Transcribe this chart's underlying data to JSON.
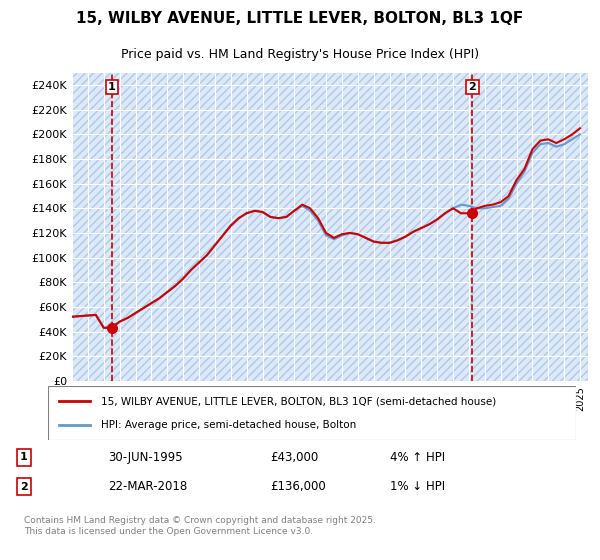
{
  "title_line1": "15, WILBY AVENUE, LITTLE LEVER, BOLTON, BL3 1QF",
  "title_line2": "Price paid vs. HM Land Registry's House Price Index (HPI)",
  "ylabel": "",
  "ylim": [
    0,
    250000
  ],
  "yticks": [
    0,
    20000,
    40000,
    60000,
    80000,
    100000,
    120000,
    140000,
    160000,
    180000,
    200000,
    220000,
    240000
  ],
  "ytick_labels": [
    "£0",
    "£20K",
    "£40K",
    "£60K",
    "£80K",
    "£100K",
    "£120K",
    "£140K",
    "£160K",
    "£180K",
    "£200K",
    "£220K",
    "£240K"
  ],
  "background_color": "#dce9f8",
  "plot_bg_color": "#dce9f8",
  "grid_color": "#ffffff",
  "red_line_color": "#cc0000",
  "blue_line_color": "#6699cc",
  "marker_color": "#cc0000",
  "dashed_line_color": "#cc0000",
  "transaction1_x": 1995.5,
  "transaction1_y": 43000,
  "transaction1_label": "1",
  "transaction2_x": 2018.22,
  "transaction2_y": 136000,
  "transaction2_label": "2",
  "legend_entry1": "15, WILBY AVENUE, LITTLE LEVER, BOLTON, BL3 1QF (semi-detached house)",
  "legend_entry2": "HPI: Average price, semi-detached house, Bolton",
  "annotation1_date": "30-JUN-1995",
  "annotation1_price": "£43,000",
  "annotation1_hpi": "4% ↑ HPI",
  "annotation2_date": "22-MAR-2018",
  "annotation2_price": "£136,000",
  "annotation2_hpi": "1% ↓ HPI",
  "copyright_text": "Contains HM Land Registry data © Crown copyright and database right 2025.\nThis data is licensed under the Open Government Licence v3.0.",
  "xmin": 1993,
  "xmax": 2025.5,
  "hpi_years": [
    1993,
    1993.5,
    1994,
    1994.5,
    1995,
    1995.5,
    1996,
    1996.5,
    1997,
    1997.5,
    1998,
    1998.5,
    1999,
    1999.5,
    2000,
    2000.5,
    2001,
    2001.5,
    2002,
    2002.5,
    2003,
    2003.5,
    2004,
    2004.5,
    2005,
    2005.5,
    2006,
    2006.5,
    2007,
    2007.5,
    2008,
    2008.5,
    2009,
    2009.5,
    2010,
    2010.5,
    2011,
    2011.5,
    2012,
    2012.5,
    2013,
    2013.5,
    2014,
    2014.5,
    2015,
    2015.5,
    2016,
    2016.5,
    2017,
    2017.5,
    2018,
    2018.5,
    2019,
    2019.5,
    2020,
    2020.5,
    2021,
    2021.5,
    2022,
    2022.5,
    2023,
    2023.5,
    2024,
    2024.5,
    2025
  ],
  "hpi_values": [
    52000,
    52500,
    53000,
    53500,
    43000,
    44000,
    48000,
    51000,
    55000,
    59000,
    63000,
    67000,
    72000,
    77000,
    83000,
    90000,
    96000,
    102000,
    110000,
    118000,
    126000,
    132000,
    136000,
    138000,
    137000,
    133000,
    132000,
    133000,
    138000,
    142000,
    138000,
    130000,
    118000,
    115000,
    118000,
    120000,
    119000,
    116000,
    113000,
    112000,
    112000,
    114000,
    117000,
    121000,
    124000,
    127000,
    131000,
    136000,
    140000,
    143000,
    142000,
    140000,
    140000,
    141000,
    142000,
    148000,
    160000,
    170000,
    185000,
    192000,
    193000,
    190000,
    192000,
    196000,
    200000
  ],
  "price_years": [
    1993,
    1993.5,
    1994,
    1994.5,
    1995,
    1995.5,
    1996,
    1996.5,
    1997,
    1997.5,
    1998,
    1998.5,
    1999,
    1999.5,
    2000,
    2000.5,
    2001,
    2001.5,
    2002,
    2002.5,
    2003,
    2003.5,
    2004,
    2004.5,
    2005,
    2005.5,
    2006,
    2006.5,
    2007,
    2007.5,
    2008,
    2008.5,
    2009,
    2009.5,
    2010,
    2010.5,
    2011,
    2011.5,
    2012,
    2012.5,
    2013,
    2013.5,
    2014,
    2014.5,
    2015,
    2015.5,
    2016,
    2016.5,
    2017,
    2017.5,
    2018,
    2018.5,
    2019,
    2019.5,
    2020,
    2020.5,
    2021,
    2021.5,
    2022,
    2022.5,
    2023,
    2023.5,
    2024,
    2024.5,
    2025
  ],
  "price_values": [
    52000,
    52500,
    53000,
    53500,
    43000,
    43000,
    48000,
    51000,
    55000,
    59000,
    63000,
    67000,
    72000,
    77000,
    83000,
    90000,
    96000,
    102000,
    110000,
    118000,
    126000,
    132000,
    136000,
    138000,
    137000,
    133000,
    132000,
    133000,
    138000,
    143000,
    140000,
    132000,
    120000,
    116000,
    119000,
    120000,
    119000,
    116000,
    113000,
    112000,
    112000,
    114000,
    117000,
    121000,
    124000,
    127000,
    131000,
    136000,
    140000,
    136000,
    136000,
    140000,
    142000,
    143000,
    145000,
    150000,
    163000,
    172000,
    188000,
    195000,
    196000,
    193000,
    196000,
    200000,
    205000
  ]
}
